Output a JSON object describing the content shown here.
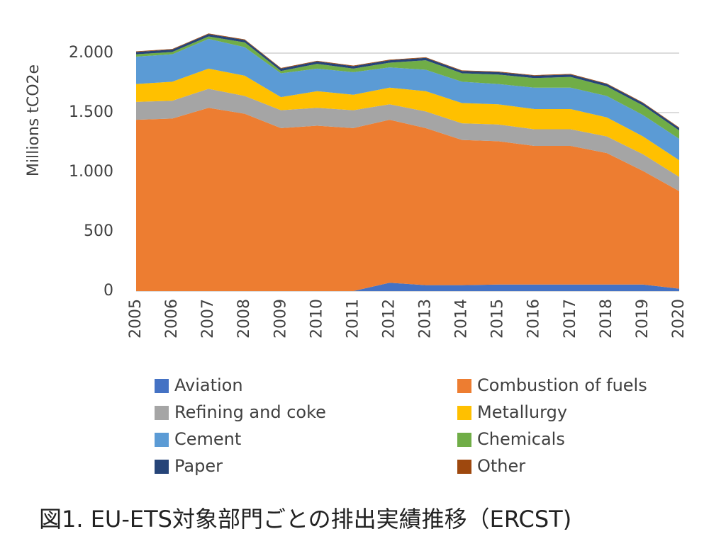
{
  "chart_data": {
    "type": "stacked-area",
    "y_label": "Millions tCO2e",
    "caption": "図1. EU-ETS対象部門ごとの排出実績推移（ERCST)",
    "categories": [
      "2005",
      "2006",
      "2007",
      "2008",
      "2009",
      "2010",
      "2011",
      "2012",
      "2013",
      "2014",
      "2015",
      "2016",
      "2017",
      "2018",
      "2019",
      "2020"
    ],
    "series": [
      {
        "name": "Aviation",
        "color": "#4472c4",
        "values": [
          0,
          0,
          0,
          0,
          0,
          0,
          0,
          70,
          50,
          50,
          55,
          55,
          55,
          55,
          55,
          20
        ]
      },
      {
        "name": "Combustion of fuels",
        "color": "#ed7d31",
        "values": [
          1440,
          1450,
          1540,
          1490,
          1370,
          1390,
          1370,
          1370,
          1320,
          1220,
          1205,
          1165,
          1165,
          1105,
          955,
          820
        ]
      },
      {
        "name": "Refining and coke",
        "color": "#a5a5a5",
        "values": [
          150,
          150,
          160,
          150,
          150,
          150,
          150,
          130,
          140,
          140,
          140,
          140,
          140,
          140,
          140,
          120
        ]
      },
      {
        "name": "Metallurgy",
        "color": "#ffc000",
        "values": [
          150,
          160,
          170,
          170,
          110,
          140,
          130,
          140,
          170,
          170,
          170,
          170,
          170,
          160,
          150,
          140
        ]
      },
      {
        "name": "Cement",
        "color": "#5b9bd5",
        "values": [
          230,
          230,
          250,
          240,
          200,
          190,
          190,
          170,
          180,
          180,
          170,
          180,
          180,
          180,
          180,
          180
        ]
      },
      {
        "name": "Chemicals",
        "color": "#70ad47",
        "values": [
          20,
          20,
          20,
          40,
          20,
          40,
          30,
          40,
          80,
          70,
          80,
          80,
          90,
          80,
          80,
          70
        ]
      },
      {
        "name": "Paper",
        "color": "#264478",
        "values": [
          20,
          20,
          20,
          20,
          20,
          20,
          20,
          20,
          20,
          20,
          20,
          20,
          20,
          20,
          20,
          20
        ]
      },
      {
        "name": "Other",
        "color": "#9e480e",
        "values": [
          5,
          5,
          5,
          5,
          5,
          5,
          5,
          5,
          5,
          5,
          5,
          5,
          5,
          5,
          5,
          5
        ]
      }
    ],
    "ylim": [
      0,
      2200
    ],
    "yticks": [
      0,
      500,
      {
        "value": 1000,
        "label": "1.000"
      },
      {
        "value": 1500,
        "label": "1.500"
      },
      {
        "value": 2000,
        "label": "2.000"
      }
    ],
    "grid": true
  }
}
